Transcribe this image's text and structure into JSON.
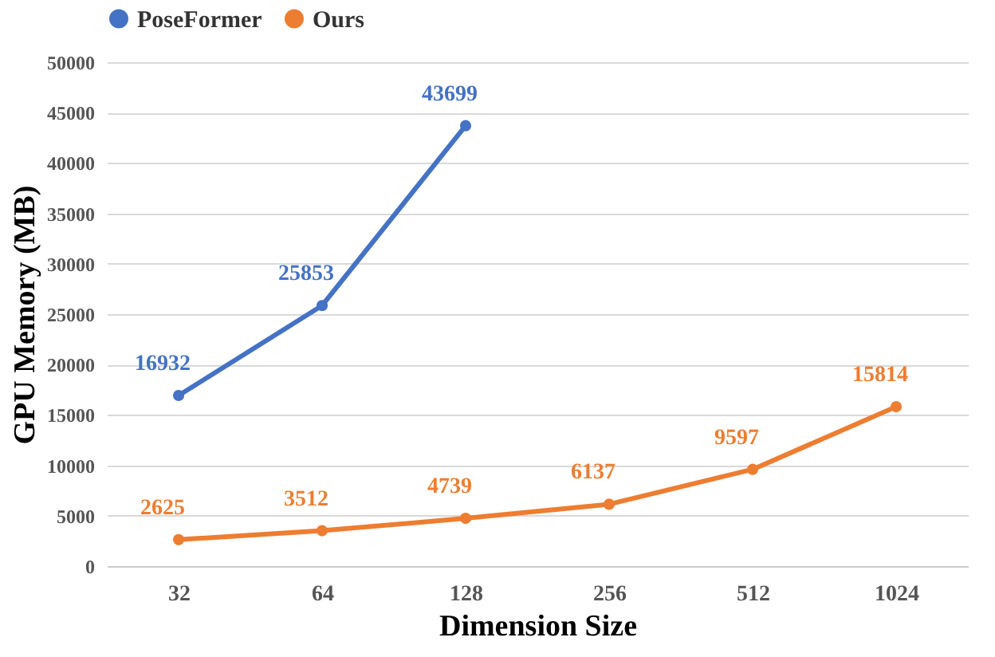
{
  "chart_data": {
    "type": "line",
    "xlabel": "Dimension Size",
    "ylabel": "GPU Memory (MB)",
    "categories": [
      "32",
      "64",
      "128",
      "256",
      "512",
      "1024"
    ],
    "series": [
      {
        "name": "PoseFormer",
        "color": "#4472c4",
        "values": [
          16932,
          25853,
          43699,
          null,
          null,
          null
        ]
      },
      {
        "name": "Ours",
        "color": "#ed7d31",
        "values": [
          2625,
          3512,
          4739,
          6137,
          9597,
          15814
        ]
      }
    ],
    "ylim": [
      0,
      50000
    ],
    "yticks": [
      0,
      5000,
      10000,
      15000,
      20000,
      25000,
      30000,
      35000,
      40000,
      45000,
      50000
    ],
    "grid": "y",
    "legend": "top",
    "marker": "circle",
    "line_style": "solid",
    "data_labels": true
  }
}
